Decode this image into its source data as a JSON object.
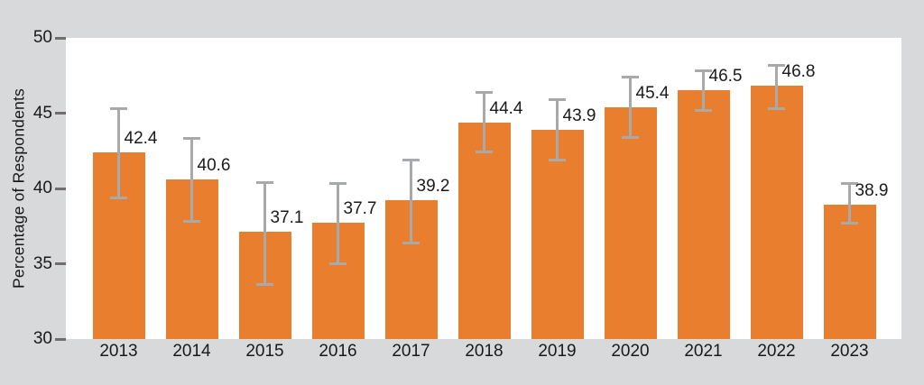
{
  "colors": {
    "background": "#d8d9db",
    "plot_background": "#ffffff",
    "bar": "#e97f2e",
    "error_bar": "#a7a9ab",
    "tick_mark": "#6e6e6e",
    "text": "#1a1a1a"
  },
  "chart_data": {
    "type": "bar",
    "title": "",
    "xlabel": "",
    "ylabel": "Percentage of Respondents",
    "ylim": [
      30,
      50
    ],
    "yticks": [
      50,
      45,
      40,
      35,
      30
    ],
    "grid": false,
    "legend_position": "none",
    "data_labels_shown": true,
    "categories": [
      "2013",
      "2014",
      "2015",
      "2016",
      "2017",
      "2018",
      "2019",
      "2020",
      "2021",
      "2022",
      "2023"
    ],
    "values": [
      42.4,
      40.6,
      37.1,
      37.7,
      39.2,
      44.4,
      43.9,
      45.4,
      46.5,
      46.8,
      38.9
    ],
    "data_labels": [
      "42.4",
      "40.6",
      "37.1",
      "37.7",
      "39.2",
      "44.4",
      "43.9",
      "45.4",
      "46.5",
      "46.8",
      "38.9"
    ],
    "error_bars": {
      "upper": [
        45.3,
        43.3,
        40.4,
        40.3,
        41.9,
        46.4,
        45.9,
        47.4,
        47.8,
        48.2,
        40.3
      ],
      "lower": [
        39.4,
        37.8,
        33.6,
        35.0,
        36.4,
        42.4,
        41.9,
        43.4,
        45.2,
        45.3,
        37.7
      ]
    }
  }
}
